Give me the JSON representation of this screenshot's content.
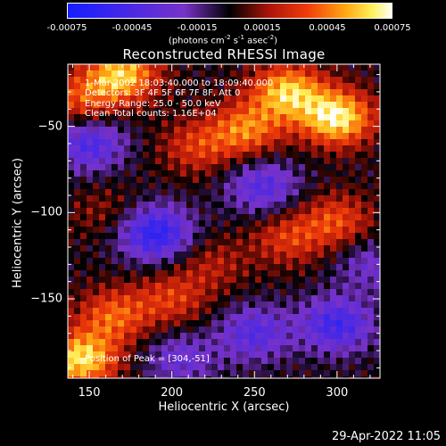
{
  "colorbar": {
    "ticks": [
      "-0.00075",
      "-0.00045",
      "-0.00015",
      "0.00015",
      "0.00045",
      "0.00075"
    ],
    "unit_parts": [
      "(photons cm",
      "-2",
      " s",
      "-1",
      " asec",
      "-2",
      ")"
    ],
    "range": [
      -0.00075,
      0.00075
    ]
  },
  "title": "Reconstructed RHESSI Image",
  "info": [
    "1-Mar-2002 18:03:40.000 to 18:09:40.000",
    "Detectors: 3F 4F 5F 6F 7F 8F, Att 0",
    "Energy Range: 25.0 - 50.0 keV",
    "Clean     Total counts: 1.16E+04"
  ],
  "peak_label": "Position of Peak = [304,-51]",
  "footer": {
    "timestamp": "29-Apr-2022 11:05"
  },
  "chart_data": {
    "type": "heatmap",
    "title": "Reconstructed RHESSI Image",
    "xlabel": "Heliocentric X (arcsec)",
    "ylabel": "Heliocentric Y (arcsec)",
    "xlim": [
      137,
      326
    ],
    "ylim": [
      -196,
      -14
    ],
    "xticks": [
      150,
      200,
      250,
      300
    ],
    "yticks": [
      -50,
      -100,
      -150
    ],
    "colormap": "blue-purple-black-red-yellow-white",
    "value_range": [
      -0.00075,
      0.00075
    ],
    "peak_position": [
      304,
      -51
    ],
    "grid": false,
    "features": [
      {
        "x": 300,
        "y": -45,
        "value": 0.0007
      },
      {
        "x": 270,
        "y": -30,
        "value": 0.0006
      },
      {
        "x": 245,
        "y": -52,
        "value": 0.00045
      },
      {
        "x": 215,
        "y": -62,
        "value": 0.0003
      },
      {
        "x": 170,
        "y": -20,
        "value": 0.0006
      },
      {
        "x": 145,
        "y": -35,
        "value": 0.00035
      },
      {
        "x": 145,
        "y": -185,
        "value": 0.00065
      },
      {
        "x": 165,
        "y": -160,
        "value": 0.0004
      },
      {
        "x": 200,
        "y": -150,
        "value": 0.0003
      },
      {
        "x": 225,
        "y": -130,
        "value": 0.0002
      },
      {
        "x": 270,
        "y": -115,
        "value": 0.0003
      },
      {
        "x": 300,
        "y": -105,
        "value": 0.00035
      },
      {
        "x": 160,
        "y": -100,
        "value": 0.00015
      },
      {
        "x": 150,
        "y": -60,
        "value": -0.00045
      },
      {
        "x": 190,
        "y": -112,
        "value": -0.0006
      },
      {
        "x": 255,
        "y": -85,
        "value": -0.0004
      },
      {
        "x": 300,
        "y": -165,
        "value": -0.0005
      },
      {
        "x": 250,
        "y": -170,
        "value": -0.0004
      },
      {
        "x": 205,
        "y": -185,
        "value": -0.0003
      },
      {
        "x": 320,
        "y": -130,
        "value": -0.00025
      }
    ]
  }
}
